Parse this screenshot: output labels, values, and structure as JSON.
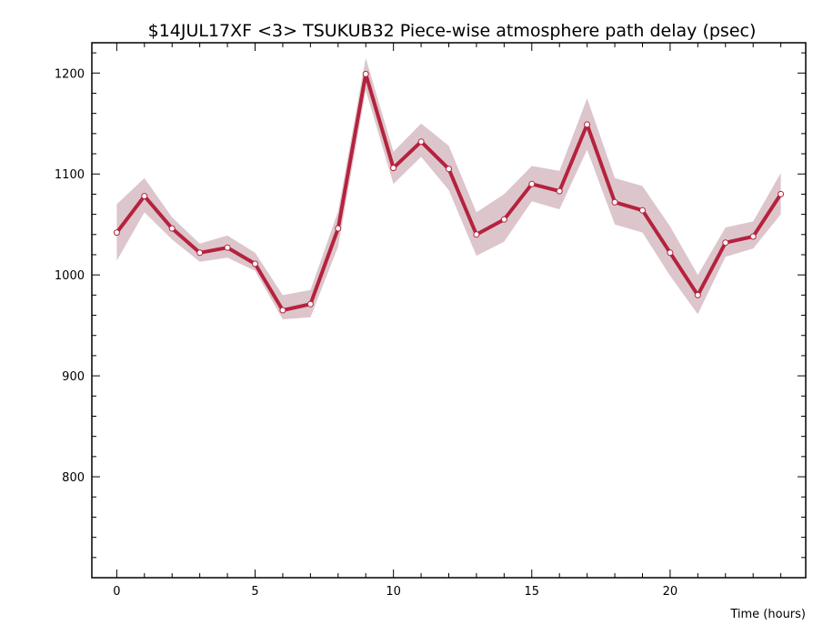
{
  "chart_data": {
    "type": "line",
    "title": "$14JUL17XF <3>  TSUKUB32  Piece-wise atmosphere path delay (psec)",
    "xlabel": "Time (hours)",
    "ylabel": "",
    "xlim": [
      -0.9,
      24.9
    ],
    "ylim": [
      700,
      1230
    ],
    "x_ticks": [
      0,
      5,
      10,
      15,
      20
    ],
    "y_ticks": [
      800,
      900,
      1000,
      1100,
      1200
    ],
    "grid": false,
    "colors": {
      "line": "#b5223e",
      "band": "#dcc6cb",
      "marker_fill": "#ffffff"
    },
    "series": [
      {
        "x": [
          0,
          1,
          2,
          3,
          4,
          5,
          6,
          7,
          8,
          9,
          10,
          11,
          12,
          13,
          14,
          15,
          16,
          17,
          18,
          19,
          20,
          21,
          22,
          23,
          24
        ],
        "values": [
          1042,
          1078,
          1046,
          1022,
          1027,
          1011,
          965,
          971,
          1046,
          1199,
          1106,
          1132,
          1105,
          1040,
          1055,
          1090,
          1083,
          1149,
          1072,
          1064,
          1022,
          980,
          1032,
          1038,
          1080
        ],
        "upper": [
          1070,
          1096,
          1057,
          1031,
          1039,
          1022,
          980,
          985,
          1063,
          1215,
          1122,
          1150,
          1128,
          1062,
          1080,
          1108,
          1103,
          1175,
          1096,
          1088,
          1048,
          1000,
          1047,
          1053,
          1101
        ],
        "lower": [
          1014,
          1062,
          1035,
          1013,
          1017,
          1004,
          956,
          958,
          1028,
          1183,
          1090,
          1117,
          1084,
          1019,
          1033,
          1073,
          1065,
          1124,
          1050,
          1042,
          999,
          961,
          1018,
          1026,
          1060
        ]
      }
    ]
  }
}
